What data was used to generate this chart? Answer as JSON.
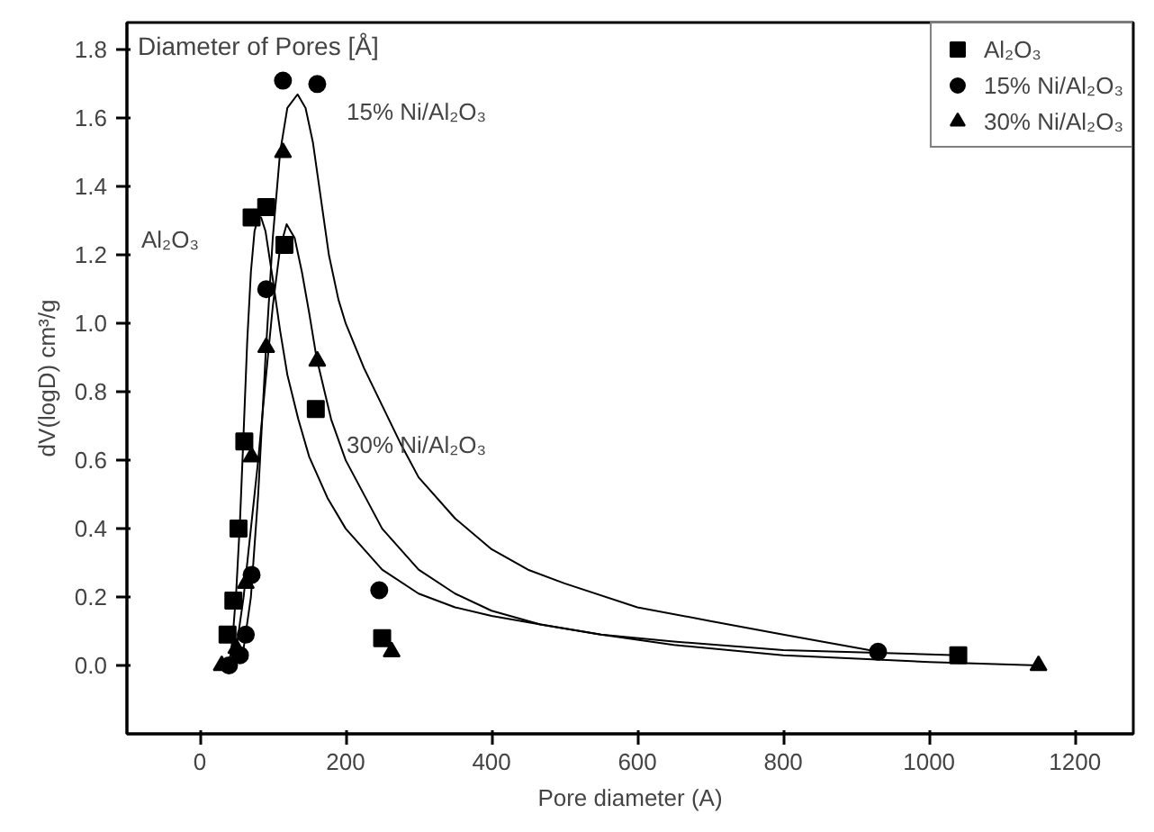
{
  "chart_data": {
    "type": "scatter",
    "xlabel": "Pore diameter (A)",
    "ylabel": "dV(logD) cm³/g",
    "annotations": [
      "Diameter of Pores [Å]",
      "15% Ni/Al₂O₃",
      "Al₂O₃",
      "30% Ni/Al₂O₃"
    ],
    "xlim": [
      -100,
      1280
    ],
    "ylim": [
      -0.2,
      1.88
    ],
    "xticks": [
      0,
      200,
      400,
      600,
      800,
      1000,
      1200
    ],
    "yticks": [
      {
        "value": 0,
        "label": "0.0"
      },
      0.2,
      0.4,
      0.6,
      0.8,
      {
        "value": 1.0,
        "label": "1.0"
      },
      1.2,
      1.4,
      1.6,
      1.8
    ],
    "grid": false,
    "legend": "top right",
    "series": [
      {
        "name": "Al₂O₃",
        "color": "#000000",
        "marker": "square",
        "x": [
          38,
          46,
          53,
          61,
          71,
          91,
          116,
          159,
          250,
          1040
        ],
        "values": [
          0.09,
          0.19,
          0.4,
          0.655,
          1.31,
          1.34,
          1.23,
          0.75,
          0.08,
          0.03
        ]
      },
      {
        "name": "15% Ni/Al₂O₃",
        "color": "#000000",
        "marker": "circle",
        "x": [
          40,
          55,
          63,
          71,
          91,
          114,
          161,
          246,
          930
        ],
        "values": [
          0.0,
          0.03,
          0.09,
          0.265,
          1.1,
          1.71,
          1.7,
          0.22,
          0.04
        ]
      },
      {
        "name": "30% Ni/Al₂O₃",
        "color": "#000000",
        "marker": "triangle",
        "x": [
          30,
          50,
          63,
          71,
          91,
          114,
          161,
          263,
          1150
        ],
        "values": [
          0.0,
          0.05,
          0.24,
          0.61,
          0.93,
          1.5,
          0.89,
          0.04,
          0.0
        ]
      },
      {
        "type": "line",
        "color": "#000000",
        "marker": "none",
        "x": [
          40,
          45,
          50,
          55,
          60,
          65,
          70,
          75,
          80,
          84,
          90,
          100,
          110,
          120,
          135,
          150,
          175,
          200,
          250,
          300,
          350,
          400,
          467,
          550,
          650,
          800,
          1040
        ],
        "values": [
          0.0,
          0.08,
          0.22,
          0.42,
          0.68,
          0.95,
          1.15,
          1.27,
          1.31,
          1.31,
          1.27,
          1.13,
          0.98,
          0.85,
          0.72,
          0.61,
          0.49,
          0.4,
          0.28,
          0.21,
          0.17,
          0.145,
          0.12,
          0.09,
          0.07,
          0.045,
          0.03
        ]
      },
      {
        "type": "line",
        "color": "#000000",
        "marker": "none",
        "x": [
          40,
          60,
          70,
          80,
          90,
          100,
          110,
          120,
          134,
          145,
          155,
          165,
          177,
          190,
          200,
          225,
          250,
          275,
          300,
          350,
          400,
          450,
          500,
          600,
          700,
          800,
          930
        ],
        "values": [
          0.0,
          0.05,
          0.2,
          0.5,
          0.9,
          1.25,
          1.5,
          1.63,
          1.67,
          1.63,
          1.53,
          1.38,
          1.2,
          1.07,
          1.0,
          0.87,
          0.76,
          0.65,
          0.55,
          0.43,
          0.34,
          0.28,
          0.24,
          0.17,
          0.13,
          0.09,
          0.04
        ]
      },
      {
        "type": "line",
        "color": "#000000",
        "marker": "none",
        "x": [
          40,
          50,
          60,
          70,
          80,
          90,
          100,
          110,
          119,
          130,
          140,
          150,
          160,
          180,
          200,
          250,
          300,
          350,
          400,
          467,
          550,
          650,
          800,
          1000,
          1150
        ],
        "values": [
          0.0,
          0.05,
          0.2,
          0.4,
          0.6,
          0.83,
          1.05,
          1.22,
          1.29,
          1.25,
          1.15,
          1.03,
          0.9,
          0.72,
          0.6,
          0.4,
          0.28,
          0.21,
          0.16,
          0.12,
          0.09,
          0.06,
          0.03,
          0.01,
          0.0
        ]
      }
    ]
  }
}
